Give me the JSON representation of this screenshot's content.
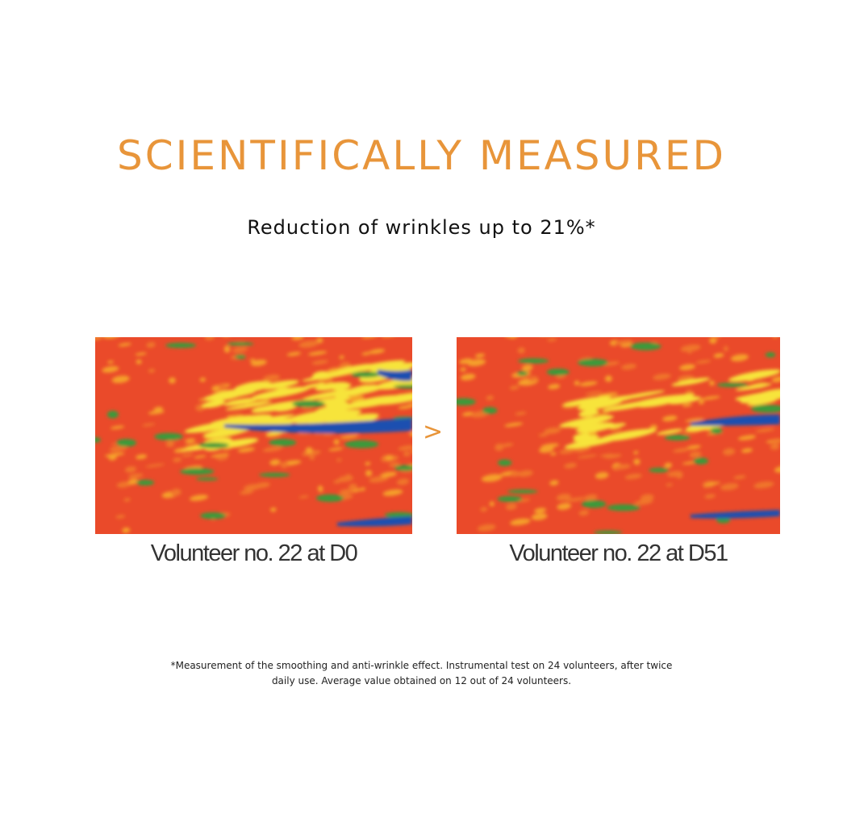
{
  "header": {
    "title": "SCIENTIFICALLY MEASURED",
    "subtitle": "Reduction of wrinkles up to 21%*"
  },
  "images": [
    {
      "caption": "Volunteer no. 22 at D0"
    },
    {
      "caption": "Volunteer no. 22 at D51"
    }
  ],
  "separator": ">",
  "footnote": {
    "lines": [
      "*Measurement of the smoothing and anti-wrinkle effect. Instrumental test on 24 volunteers, after twice",
      "daily use. Average value obtained on 12 out of 24 volunteers."
    ]
  }
}
